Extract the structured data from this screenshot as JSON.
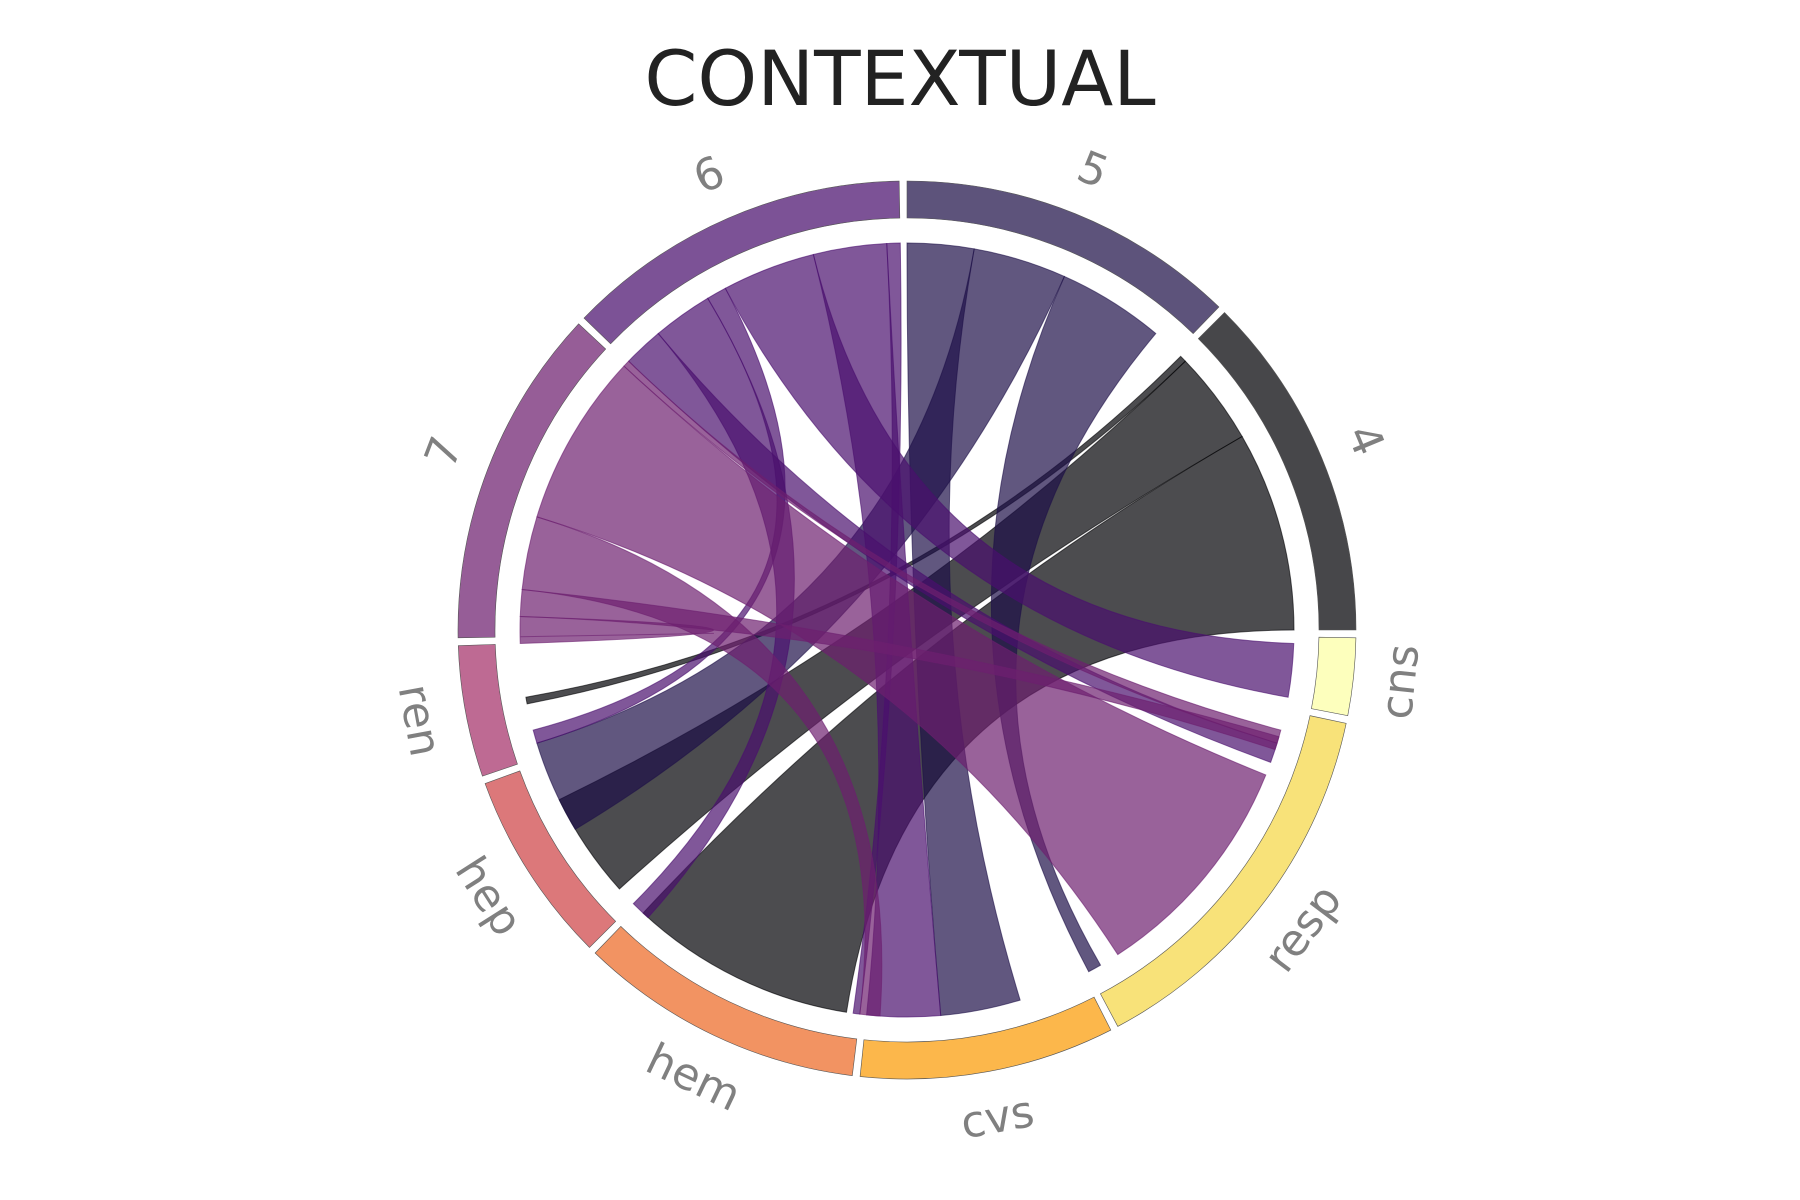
{
  "chart_data": {
    "type": "chord",
    "title": "CONTEXTUAL",
    "segments": [
      {
        "id": "4",
        "label": "4",
        "color": "#000004",
        "start_deg": 0,
        "end_deg": 45
      },
      {
        "id": "5",
        "label": "5",
        "color": "#1e1048",
        "start_deg": 46,
        "end_deg": 90
      },
      {
        "id": "6",
        "label": "6",
        "color": "#4a0f6e",
        "start_deg": 91,
        "end_deg": 136
      },
      {
        "id": "7",
        "label": "7",
        "color": "#6d1f6f",
        "start_deg": 137,
        "end_deg": 181
      },
      {
        "id": "ren",
        "label": "ren",
        "color": "#a5306a",
        "start_deg": 182,
        "end_deg": 199
      },
      {
        "id": "hep",
        "label": "hep",
        "color": "#cf4446",
        "start_deg": 200,
        "end_deg": 225
      },
      {
        "id": "hem",
        "label": "hem",
        "color": "#ed6925",
        "start_deg": 226,
        "end_deg": 263
      },
      {
        "id": "cvs",
        "label": "cvs",
        "color": "#fb9b06",
        "start_deg": 264,
        "end_deg": 297
      },
      {
        "id": "resp",
        "label": "resp",
        "color": "#f5d745",
        "start_deg": 298,
        "end_deg": 348
      },
      {
        "id": "cns",
        "label": "cns",
        "color": "#fcffa4",
        "start_deg": 349,
        "end_deg": 359
      }
    ],
    "links": [
      {
        "source": "4",
        "target": "ren",
        "src_deg": [
          44,
          45
        ],
        "tgt_deg": [
          190,
          191
        ]
      },
      {
        "source": "4",
        "target": "hep",
        "src_deg": [
          30,
          44
        ],
        "tgt_deg": [
          206,
          222
        ]
      },
      {
        "source": "4",
        "target": "hem",
        "src_deg": [
          0,
          30
        ],
        "tgt_deg": [
          227,
          261
        ]
      },
      {
        "source": "5",
        "target": "cvs",
        "src_deg": [
          80,
          90
        ],
        "tgt_deg": [
          275,
          287
        ]
      },
      {
        "source": "5",
        "target": "hep",
        "src_deg": [
          66,
          80
        ],
        "tgt_deg": [
          197,
          211
        ]
      },
      {
        "source": "5",
        "target": "resp",
        "src_deg": [
          50,
          66
        ],
        "tgt_deg": [
          298,
          300
        ]
      },
      {
        "source": "6",
        "target": "hem",
        "src_deg": [
          91,
          93
        ],
        "tgt_deg": [
          262,
          263
        ]
      },
      {
        "source": "6",
        "target": "cvs",
        "src_deg": [
          93,
          104
        ],
        "tgt_deg": [
          264,
          275
        ]
      },
      {
        "source": "6",
        "target": "resp",
        "src_deg": [
          104,
          118
        ],
        "tgt_deg": [
          350,
          358
        ]
      },
      {
        "source": "6",
        "target": "ren",
        "src_deg": [
          118,
          121
        ],
        "tgt_deg": [
          195,
          197
        ]
      },
      {
        "source": "6",
        "target": "hep",
        "src_deg": [
          121,
          130
        ],
        "tgt_deg": [
          225,
          228
        ]
      },
      {
        "source": "6",
        "target": "resp",
        "src_deg": [
          130,
          136
        ],
        "tgt_deg": [
          340,
          343
        ]
      },
      {
        "source": "7",
        "target": "resp",
        "src_deg": [
          136,
          137
        ],
        "tgt_deg": [
          343,
          345
        ]
      },
      {
        "source": "7",
        "target": "cns",
        "src_deg": [
          137,
          163
        ],
        "tgt_deg": [
          303,
          338
        ]
      },
      {
        "source": "7",
        "target": "cvs",
        "src_deg": [
          163,
          174
        ],
        "tgt_deg": [
          263,
          266
        ]
      },
      {
        "source": "7",
        "target": "cns",
        "src_deg": [
          174,
          178
        ],
        "tgt_deg": [
          342,
          344
        ]
      },
      {
        "source": "7",
        "target": "ren",
        "src_deg": [
          178,
          181
        ],
        "tgt_deg": [
          181,
          182
        ]
      }
    ]
  }
}
